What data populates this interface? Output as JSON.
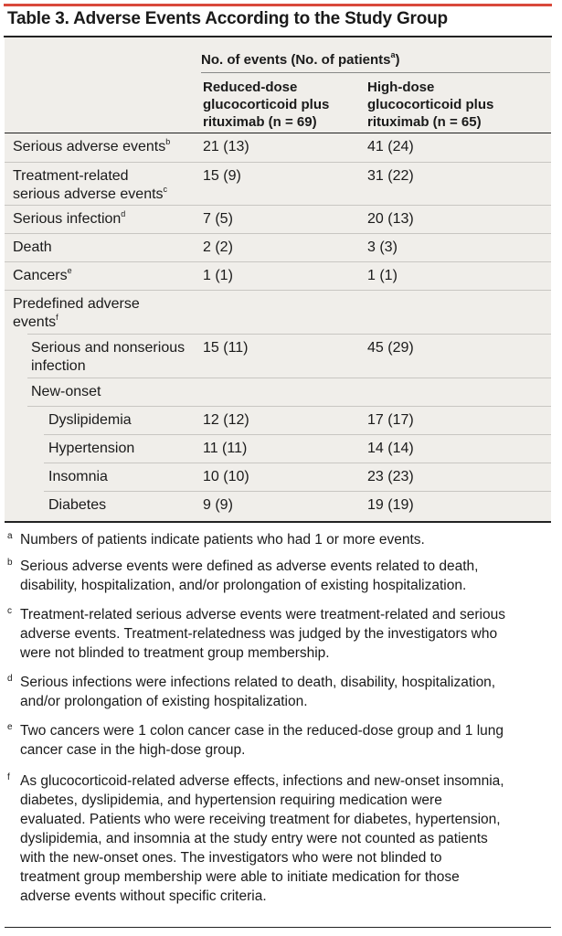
{
  "title": "Table 3. Adverse Events According to the Study Group",
  "column_header": {
    "text": "No. of events (No. of patients",
    "sup": "a",
    "close": ")"
  },
  "groups": [
    "Reduced-dose\nglucocorticoid plus\nrituximab (n = 69)",
    "High-dose\nglucocorticoid plus\nrituximab (n = 65)"
  ],
  "rows": [
    {
      "label": "Serious adverse events",
      "sup": "b",
      "v1": "21 (13)",
      "v2": "41 (24)"
    },
    {
      "label": "Treatment-related\nserious adverse events",
      "sup": "c",
      "v1": "15 (9)",
      "v2": "31 (22)"
    },
    {
      "label": "Serious infection",
      "sup": "d",
      "v1": "7 (5)",
      "v2": "20 (13)"
    },
    {
      "label": "Death",
      "sup": "",
      "v1": "2 (2)",
      "v2": "3 (3)"
    },
    {
      "label": "Cancers",
      "sup": "e",
      "v1": "1 (1)",
      "v2": "1 (1)"
    },
    {
      "label": "Predefined adverse\nevents",
      "sup": "f",
      "v1": "",
      "v2": ""
    },
    {
      "label": "Serious and nonserious\ninfection",
      "sup": "",
      "v1": "15 (11)",
      "v2": "45 (29)"
    },
    {
      "label": "New-onset",
      "sup": "",
      "v1": "",
      "v2": ""
    },
    {
      "label": "Dyslipidemia",
      "sup": "",
      "v1": "12 (12)",
      "v2": "17 (17)"
    },
    {
      "label": "Hypertension",
      "sup": "",
      "v1": "11 (11)",
      "v2": "14 (14)"
    },
    {
      "label": "Insomnia",
      "sup": "",
      "v1": "10 (10)",
      "v2": "23 (23)"
    },
    {
      "label": "Diabetes",
      "sup": "",
      "v1": "9 (9)",
      "v2": "19 (19)"
    }
  ],
  "footnotes": [
    {
      "mark": "a",
      "text": "Numbers of patients indicate patients who had 1 or more events."
    },
    {
      "mark": "b",
      "text": "Serious adverse events were defined as adverse events related to death,\ndisability, hospitalization, and/or prolongation of existing hospitalization."
    },
    {
      "mark": "c",
      "text": "Treatment-related serious adverse events were treatment-related and serious\nadverse events. Treatment-relatedness was judged by the investigators who\nwere not blinded to treatment group membership."
    },
    {
      "mark": "d",
      "text": "Serious infections were infections related to death, disability, hospitalization,\nand/or prolongation of existing hospitalization."
    },
    {
      "mark": "e",
      "text": "Two cancers were 1 colon cancer case in the reduced-dose group and 1 lung\ncancer case in the high-dose group."
    },
    {
      "mark": "f",
      "text": "As glucocorticoid-related adverse effects, infections and new-onset insomnia,\ndiabetes, dyslipidemia, and hypertension requiring medication were\nevaluated. Patients who were receiving treatment for diabetes, hypertension,\ndyslipidemia, and insomnia at the study entry were not counted as patients\nwith the new-onset ones. The investigators who were not blinded to\ntreatment group membership were able to initiate medication for those\nadverse events without specific criteria."
    }
  ],
  "colors": {
    "accent_rule": "#d9493b",
    "table_shade": "#f0eeea"
  }
}
